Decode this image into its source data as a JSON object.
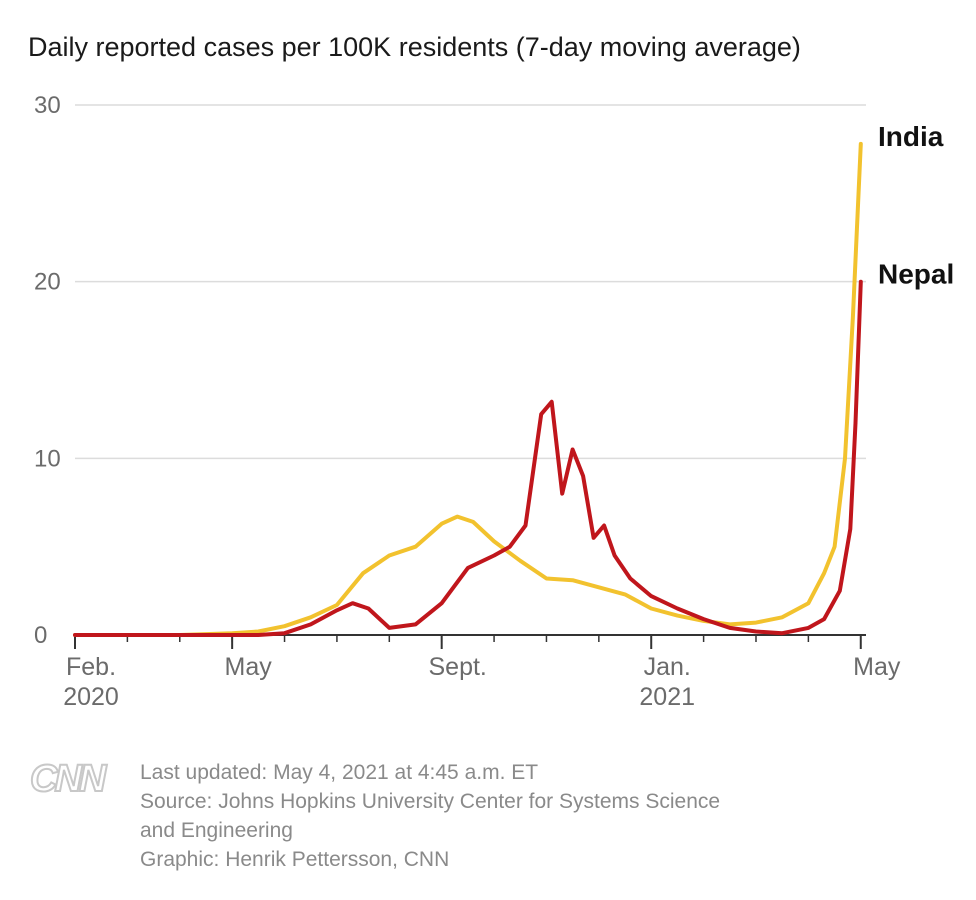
{
  "chart_data": {
    "type": "line",
    "title": "Daily reported cases per 100K residents (7-day moving average)",
    "xlabel": "",
    "ylabel": "",
    "ylim": [
      0,
      30
    ],
    "xlim": [
      0,
      15.1
    ],
    "yticks": [
      0,
      10,
      20,
      30
    ],
    "xticks": [
      {
        "value": 0,
        "label_line1": "Feb.",
        "label_line2": "2020"
      },
      {
        "value": 3,
        "label_line1": "May",
        "label_line2": ""
      },
      {
        "value": 7,
        "label_line1": "Sept.",
        "label_line2": ""
      },
      {
        "value": 11,
        "label_line1": "Jan.",
        "label_line2": "2021"
      },
      {
        "value": 15,
        "label_line1": "May",
        "label_line2": ""
      }
    ],
    "x_unit": "months since Feb. 1, 2020",
    "series": [
      {
        "name": "India",
        "color": "#f2c22e",
        "x": [
          0,
          2,
          3,
          3.5,
          4,
          4.5,
          5,
          5.5,
          6,
          6.5,
          7,
          7.3,
          7.6,
          8,
          8.5,
          9,
          9.5,
          10,
          10.5,
          11,
          11.5,
          12,
          12.5,
          13,
          13.5,
          14,
          14.3,
          14.5,
          14.7,
          14.85,
          15
        ],
        "values": [
          0,
          0,
          0.1,
          0.2,
          0.5,
          1.0,
          1.7,
          3.5,
          4.5,
          5.0,
          6.3,
          6.7,
          6.4,
          5.3,
          4.2,
          3.2,
          3.1,
          2.7,
          2.3,
          1.5,
          1.1,
          0.8,
          0.6,
          0.7,
          1.0,
          1.8,
          3.5,
          5.0,
          10.0,
          18.0,
          27.8
        ]
      },
      {
        "name": "Nepal",
        "color": "#c0161c",
        "x": [
          0,
          3.5,
          4,
          4.5,
          5,
          5.3,
          5.6,
          6,
          6.5,
          7,
          7.5,
          8,
          8.3,
          8.6,
          8.9,
          9.1,
          9.3,
          9.5,
          9.7,
          9.9,
          10.1,
          10.3,
          10.6,
          11,
          11.5,
          12,
          12.5,
          13,
          13.5,
          14,
          14.3,
          14.6,
          14.8,
          14.9,
          15
        ],
        "values": [
          0,
          0,
          0.1,
          0.6,
          1.4,
          1.8,
          1.5,
          0.4,
          0.6,
          1.8,
          3.8,
          4.5,
          5.0,
          6.2,
          12.5,
          13.2,
          8.0,
          10.5,
          9.0,
          5.5,
          6.2,
          4.5,
          3.2,
          2.2,
          1.5,
          0.9,
          0.4,
          0.2,
          0.1,
          0.4,
          0.9,
          2.5,
          6.0,
          12.0,
          20.0
        ]
      }
    ]
  },
  "footer": {
    "logo_text": "CNN",
    "updated": "Last updated: May 4, 2021 at 4:45 a.m. ET",
    "source_line1": "Source: Johns Hopkins University Center for Systems Science",
    "source_line2": "and Engineering",
    "graphic": "Graphic: Henrik Pettersson, CNN"
  }
}
